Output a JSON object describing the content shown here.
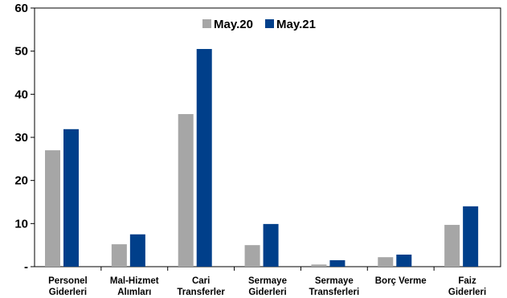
{
  "chart_data": {
    "type": "bar",
    "categories": [
      [
        "Personel",
        "Giderleri"
      ],
      [
        "Mal-Hizmet",
        "Alımları"
      ],
      [
        "Cari",
        "Transferler"
      ],
      [
        "Sermaye",
        "Giderleri"
      ],
      [
        "Sermaye",
        "Transferleri"
      ],
      [
        "Borç Verme"
      ],
      [
        "Faiz",
        "Giderleri"
      ]
    ],
    "series": [
      {
        "name": "May.20",
        "color": "#a6a6a6",
        "values": [
          27.0,
          5.2,
          35.4,
          5.0,
          0.5,
          2.2,
          9.7
        ]
      },
      {
        "name": "May.21",
        "color": "#003f8a",
        "values": [
          31.9,
          7.5,
          50.5,
          9.9,
          1.5,
          2.8,
          14.0
        ]
      }
    ],
    "yticks": [
      "-",
      "10",
      "20",
      "30",
      "40",
      "50",
      "60"
    ],
    "ylim": [
      0,
      60
    ],
    "legend_position": "top-center",
    "grid": false
  }
}
